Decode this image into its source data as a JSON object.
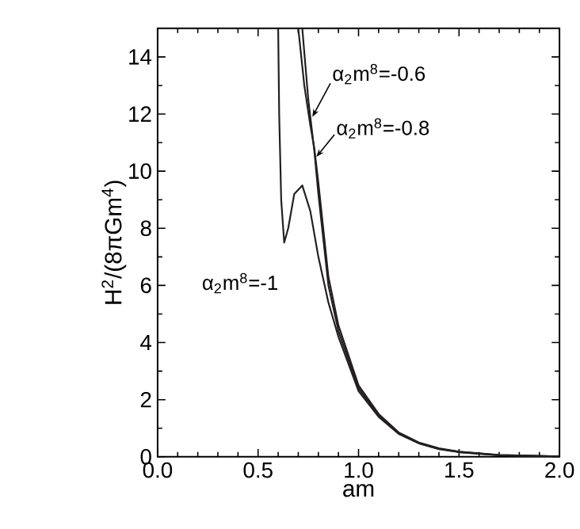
{
  "chart_data": {
    "type": "line",
    "xlabel": "am",
    "ylabel": "H$^{2}$/(8πGm$^{4}$)",
    "xlim": [
      0,
      2
    ],
    "ylim": [
      0,
      15
    ],
    "xticks": [
      {
        "value": 0,
        "label": "0.0"
      },
      {
        "value": 0.5,
        "label": "0.5"
      },
      {
        "value": 1,
        "label": "1.0"
      },
      {
        "value": 1.5,
        "label": "1.5"
      },
      {
        "value": 2,
        "label": "2.0"
      }
    ],
    "yticks": [
      0,
      2,
      4,
      6,
      8,
      10,
      12,
      14
    ],
    "marker": "none",
    "line_style": "solid",
    "series": [
      {
        "color": "#231f20",
        "x": [
          0.7,
          0.73,
          0.76,
          0.78,
          0.8,
          0.85,
          0.9,
          1.0,
          1.1,
          1.2,
          1.3,
          1.4,
          1.5,
          1.7,
          2.0
        ],
        "values": [
          15,
          13,
          11.6,
          10.8,
          9.6,
          6.3,
          4.6,
          2.5,
          1.5,
          0.85,
          0.5,
          0.3,
          0.18,
          0.06,
          0.01
        ]
      },
      {
        "color": "#231f20",
        "x": [
          0.72,
          0.75,
          0.78,
          0.8,
          0.85,
          0.9,
          1.0,
          1.1,
          1.2,
          1.3,
          1.4,
          1.5,
          1.7,
          2.0
        ],
        "values": [
          15,
          12.5,
          10.7,
          9.2,
          6.0,
          4.4,
          2.4,
          1.45,
          0.82,
          0.48,
          0.28,
          0.17,
          0.06,
          0.01
        ]
      },
      {
        "color": "#231f20",
        "x": [
          0.6,
          0.605,
          0.615,
          0.63,
          0.65,
          0.68,
          0.72,
          0.76,
          0.8,
          0.85,
          0.9,
          1.0,
          1.1,
          1.2,
          1.3,
          1.4,
          1.5,
          1.7,
          2.0
        ],
        "values": [
          15,
          12,
          9,
          7.5,
          8.0,
          9.2,
          9.5,
          8.6,
          7.0,
          5.4,
          4.2,
          2.3,
          1.4,
          0.8,
          0.47,
          0.27,
          0.16,
          0.05,
          0.01
        ]
      }
    ],
    "annotations": [
      {
        "text": "α$_{2}$m$^{8}$=-0.6",
        "x": 0.76,
        "y": 11.8
      },
      {
        "text": "α$_{2}$m$^{8}$=-0.8",
        "x": 0.78,
        "y": 10.4
      },
      {
        "text": "α$_{2}$m$^{8}$=-1",
        "x": 0.63,
        "y": 7.5
      }
    ]
  }
}
